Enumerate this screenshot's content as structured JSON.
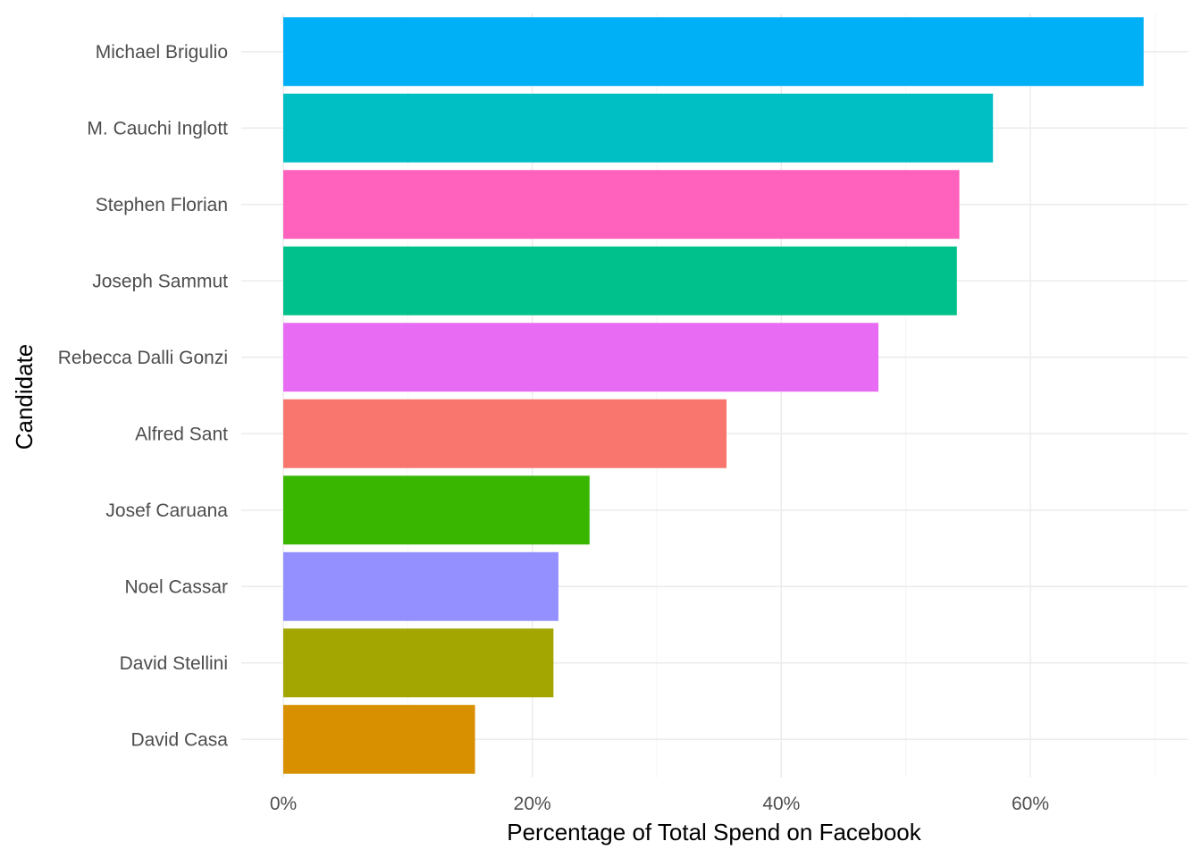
{
  "chart_data": {
    "type": "bar",
    "orientation": "horizontal",
    "title": "",
    "xlabel": "Percentage of Total Spend on Facebook",
    "ylabel": "Candidate",
    "xlim": [
      0,
      0.72
    ],
    "x_ticks": [
      {
        "value": 0,
        "label": "0%"
      },
      {
        "value": 0.2,
        "label": "20%"
      },
      {
        "value": 0.4,
        "label": "40%"
      },
      {
        "value": 0.6,
        "label": "60%"
      }
    ],
    "grid": true,
    "legend": "none",
    "categories": [
      "Michael Brigulio",
      "M. Cauchi Inglott",
      "Stephen Florian",
      "Joseph Sammut",
      "Rebecca Dalli Gonzi",
      "Alfred Sant",
      "Josef Caruana",
      "Noel Cassar",
      "David Stellini",
      "David Casa"
    ],
    "values": [
      0.691,
      0.57,
      0.543,
      0.541,
      0.478,
      0.356,
      0.246,
      0.221,
      0.217,
      0.154
    ],
    "colors": [
      "#00B0F6",
      "#00BFC4",
      "#FF62BC",
      "#00C08B",
      "#E76BF3",
      "#F8766D",
      "#39B600",
      "#9590FF",
      "#A3A500",
      "#D89000"
    ]
  }
}
